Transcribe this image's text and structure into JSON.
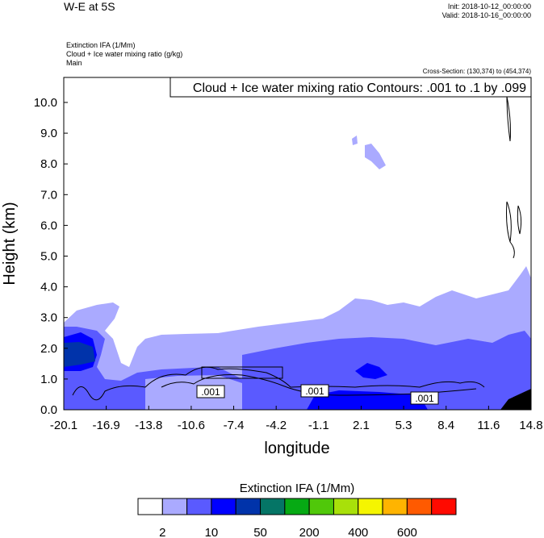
{
  "header": {
    "title": "W-E at 5S",
    "init": "Init: 2018-10-12_00:00:00",
    "valid": "Valid: 2018-10-16_00:00:00",
    "field1": "Extinction IFA   (1/Mm)",
    "field2": "Cloud + Ice water mixing ratio    (g/kg)",
    "field3": "Main",
    "cross_section": "Cross-Section: (130,374) to (454,374)"
  },
  "chart_data": {
    "type": "heatmap",
    "title": "W-E at 5S",
    "contour_info": "Cloud + Ice water mixing ratio Contours: .001 to .1 by .099",
    "xlabel": "longitude",
    "ylabel": "Height (km)",
    "xlim": [
      -20.1,
      14.8
    ],
    "ylim": [
      0,
      10.8
    ],
    "xticks": [
      "-20.1",
      "-16.9",
      "-13.8",
      "-10.6",
      "-7.4",
      "-4.2",
      "-1.1",
      "2.1",
      "5.3",
      "8.4",
      "11.6",
      "14.8"
    ],
    "yticks": [
      "0.0",
      "1.0",
      "2.0",
      "3.0",
      "4.0",
      "5.0",
      "6.0",
      "7.0",
      "8.0",
      "9.0",
      "10.0"
    ],
    "contour_labels": [
      ".001",
      ".001",
      ".001"
    ],
    "colorbar": {
      "title": "Extinction IFA  (1/Mm)",
      "colors": [
        "#ffffff",
        "#aaaaff",
        "#5a5aff",
        "#0000ff",
        "#0033aa",
        "#057566",
        "#06aa14",
        "#50c80a",
        "#a8e00a",
        "#f5f500",
        "#ffb400",
        "#ff5a00",
        "#ff0a00"
      ],
      "labels": [
        "2",
        "10",
        "50",
        "200",
        "400",
        "600"
      ]
    }
  }
}
